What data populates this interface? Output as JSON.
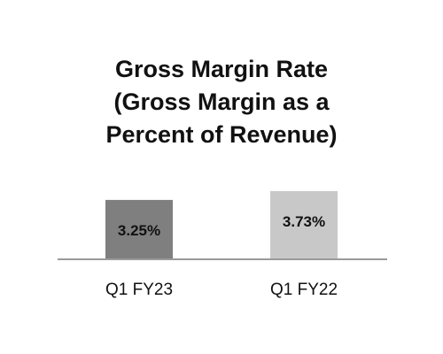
{
  "chart_data": {
    "type": "bar",
    "title_lines": [
      "Gross Margin Rate",
      "(Gross Margin as a",
      "Percent of Revenue)"
    ],
    "categories": [
      "Q1 FY23",
      "Q1 FY22"
    ],
    "values": [
      3.25,
      3.73
    ],
    "value_labels": [
      "3.25%",
      "3.73%"
    ],
    "bar_colors": [
      "#7f7f7f",
      "#c8c8c8"
    ],
    "axis_color": "#9a9a9a",
    "ylim": [
      0,
      3.73
    ],
    "legend": "none",
    "grid": false
  }
}
